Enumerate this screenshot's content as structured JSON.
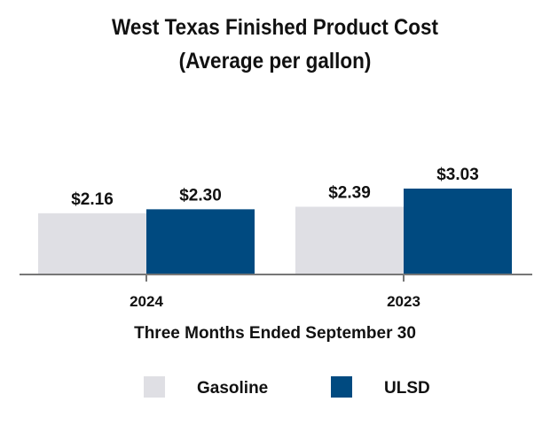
{
  "chart_data": {
    "type": "bar",
    "title": [
      "West Texas Finished Product Cost",
      "(Average per gallon)"
    ],
    "categories": [
      "2024",
      "2023"
    ],
    "xlabel": "Three Months Ended September 30",
    "ylabel": "",
    "ylim": [
      0,
      3.6
    ],
    "grid": false,
    "legend_placement": "bottom",
    "value_labels": true,
    "series": [
      {
        "name": "Gasoline",
        "values": [
          2.16,
          2.39
        ],
        "labels": [
          "$2.16",
          "$2.39"
        ],
        "color": "#dfdfe4"
      },
      {
        "name": "ULSD",
        "values": [
          2.3,
          3.03
        ],
        "labels": [
          "$2.30",
          "$3.03"
        ],
        "color": "#004a80"
      }
    ]
  }
}
